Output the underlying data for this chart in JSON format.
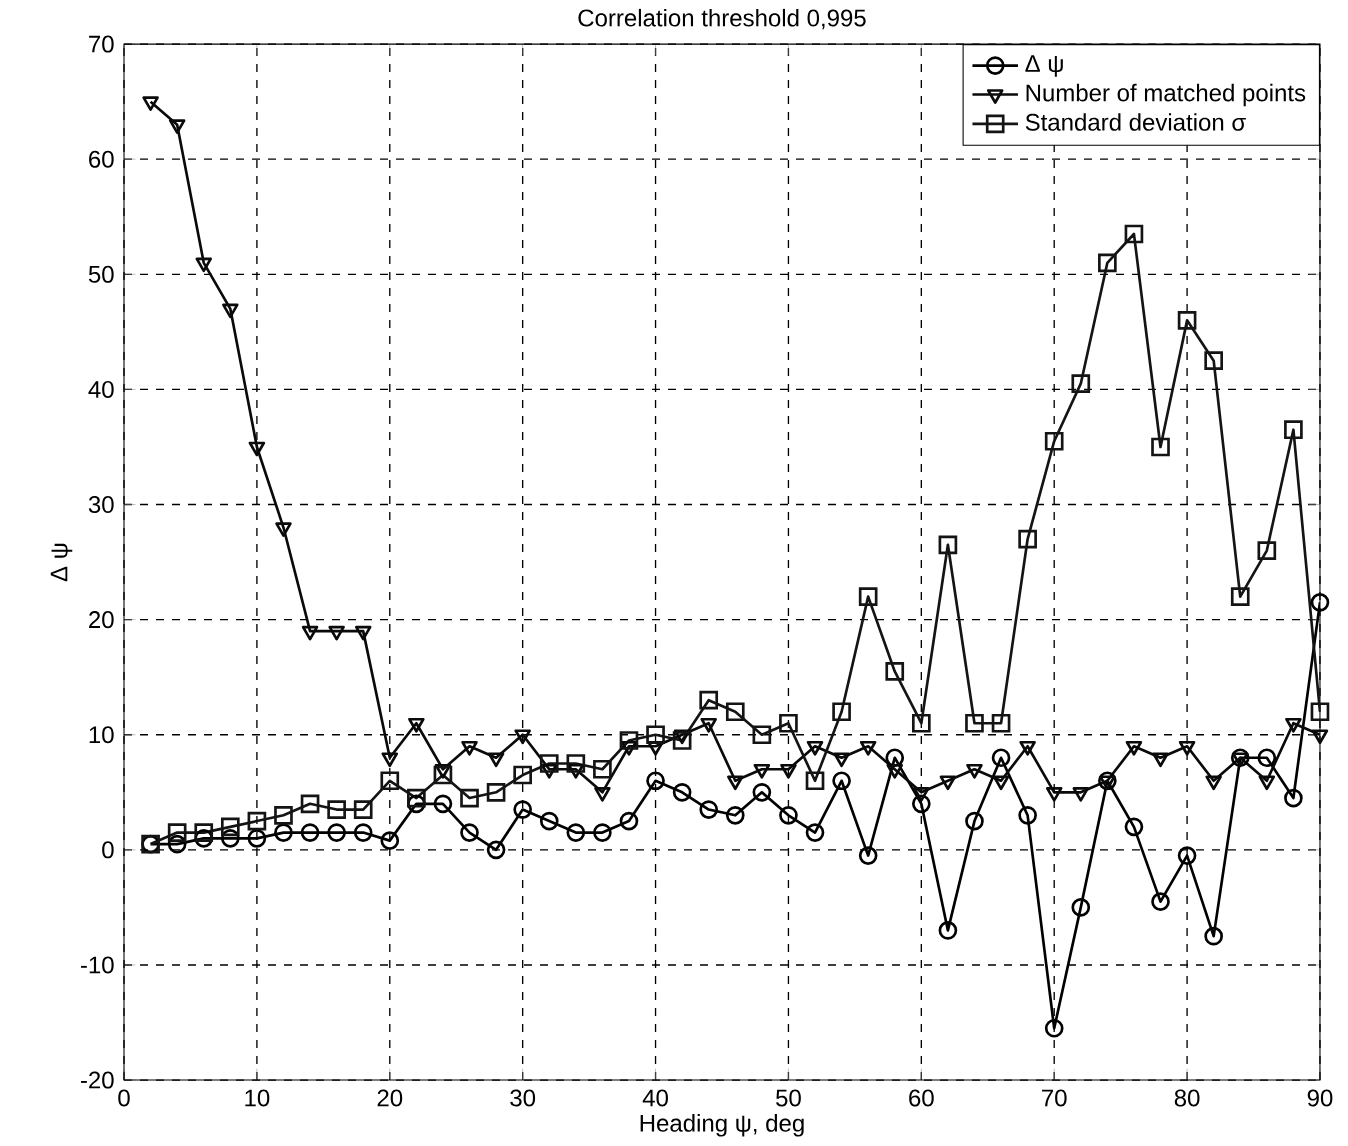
{
  "chart_data": {
    "type": "line",
    "title": "Correlation threshold 0,995",
    "xlabel": "Heading ψ, deg",
    "ylabel": "Δ ψ",
    "x": [
      2,
      4,
      6,
      8,
      10,
      12,
      14,
      16,
      18,
      20,
      22,
      24,
      26,
      28,
      30,
      32,
      34,
      36,
      38,
      40,
      42,
      44,
      46,
      48,
      50,
      52,
      54,
      56,
      58,
      60,
      62,
      64,
      66,
      68,
      70,
      72,
      74,
      76,
      78,
      80,
      82,
      84,
      86,
      88,
      90
    ],
    "series": [
      {
        "name": "Δ ψ",
        "color": "#000000",
        "marker": "circle",
        "values": [
          0.5,
          0.5,
          1,
          1,
          1,
          1.5,
          1.5,
          1.5,
          1.5,
          0.8,
          4,
          4,
          1.5,
          0,
          3.5,
          2.5,
          1.5,
          1.5,
          2.5,
          6,
          5,
          3.5,
          3,
          5,
          3,
          1.5,
          6,
          -0.5,
          8,
          4,
          -7,
          2.5,
          8,
          3,
          -15.5,
          -5,
          6,
          2,
          -4.5,
          -0.5,
          -7.5,
          8,
          8,
          4.5,
          21.5
        ]
      },
      {
        "name": "Number of matched points",
        "color": "#0a0a0a",
        "marker": "triangle",
        "values": [
          65,
          63,
          51,
          47,
          35,
          28,
          19,
          19,
          19,
          8,
          11,
          7,
          9,
          8,
          10,
          7,
          7,
          5,
          9,
          9,
          10,
          11,
          6,
          7,
          7,
          9,
          8,
          9,
          7,
          5,
          6,
          7,
          6,
          9,
          5,
          5,
          6,
          9,
          8,
          9,
          6,
          8,
          6,
          11,
          10
        ]
      },
      {
        "name": "Standard deviation σ",
        "color": "#141414",
        "marker": "square",
        "values": [
          0.5,
          1.5,
          1.5,
          2,
          2.5,
          3,
          4,
          3.5,
          3.5,
          6,
          4.5,
          6.5,
          4.5,
          5,
          6.5,
          7.5,
          7.5,
          7,
          9.5,
          10,
          9.5,
          13,
          12,
          10,
          11,
          6,
          12,
          22,
          15.5,
          11,
          26.5,
          11,
          11,
          27,
          35.5,
          40.5,
          51,
          53.5,
          35,
          46,
          42.5,
          22,
          26,
          36.5,
          12
        ]
      }
    ],
    "xlim": [
      0,
      90
    ],
    "ylim": [
      -20,
      70
    ],
    "xticks": [
      0,
      10,
      20,
      30,
      40,
      50,
      60,
      70,
      80,
      90
    ],
    "yticks": [
      -20,
      -10,
      0,
      10,
      20,
      30,
      40,
      50,
      60,
      70
    ],
    "grid": true,
    "legend": "top right",
    "line_style": "solid"
  }
}
